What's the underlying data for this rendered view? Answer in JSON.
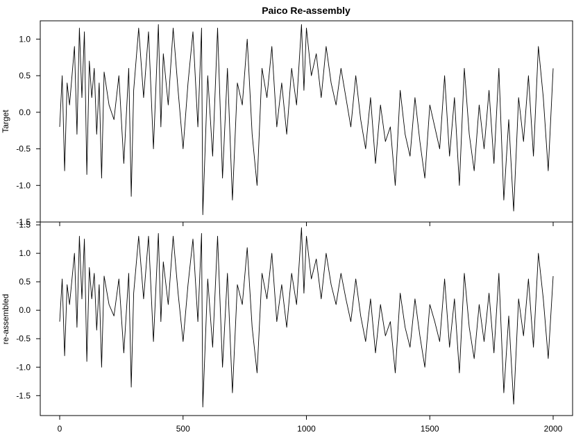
{
  "chart_data": {
    "type": "line",
    "title": "Paico Re-assembly",
    "x_range": [
      0,
      2000
    ],
    "x_ticks": [
      0,
      500,
      1000,
      1500,
      2000
    ],
    "x_tick_labels": [
      "0",
      "500",
      "1000",
      "1500",
      "2000"
    ],
    "grid": false,
    "legend": "none",
    "line_color": "#000000",
    "panels": [
      {
        "ylabel": "Target",
        "ylim": [
          -1.5,
          1.25
        ],
        "y_ticks": [
          -1.5,
          -1.0,
          -0.5,
          0.0,
          0.5,
          1.0
        ],
        "y_tick_labels": [
          "-1.5",
          "-1.0",
          "-0.5",
          "0.0",
          "0.5",
          "1.0"
        ],
        "series": [
          {
            "x": [
              0,
              10,
              20,
              30,
              40,
              60,
              70,
              80,
              90,
              100,
              110,
              120,
              130,
              140,
              150,
              160,
              170,
              180,
              200,
              220,
              240,
              260,
              280,
              290,
              300,
              320,
              340,
              360,
              380,
              400,
              410,
              420,
              440,
              460,
              480,
              500,
              520,
              540,
              560,
              575,
              580,
              600,
              620,
              640,
              660,
              680,
              700,
              720,
              740,
              760,
              780,
              800,
              820,
              840,
              860,
              880,
              900,
              920,
              940,
              960,
              980,
              990,
              1000,
              1020,
              1040,
              1060,
              1080,
              1100,
              1120,
              1140,
              1160,
              1180,
              1200,
              1220,
              1240,
              1260,
              1280,
              1300,
              1320,
              1340,
              1360,
              1380,
              1400,
              1420,
              1440,
              1460,
              1480,
              1500,
              1520,
              1540,
              1560,
              1580,
              1600,
              1620,
              1640,
              1660,
              1680,
              1700,
              1720,
              1740,
              1760,
              1780,
              1800,
              1820,
              1840,
              1860,
              1880,
              1900,
              1920,
              1940,
              1960,
              1980,
              2000
            ],
            "y": [
              -0.2,
              0.5,
              -0.8,
              0.4,
              0.1,
              0.9,
              -0.3,
              1.15,
              0.2,
              1.1,
              -0.85,
              0.7,
              0.2,
              0.6,
              -0.3,
              0.4,
              -0.9,
              0.55,
              0.1,
              -0.1,
              0.5,
              -0.7,
              0.6,
              -1.15,
              0.3,
              1.15,
              0.2,
              1.1,
              -0.5,
              1.2,
              -0.2,
              0.8,
              0.1,
              1.15,
              0.3,
              -0.5,
              0.4,
              1.1,
              -0.2,
              1.15,
              -1.4,
              0.5,
              -0.6,
              1.15,
              -0.9,
              0.6,
              -1.2,
              0.4,
              0.1,
              1.0,
              -0.3,
              -1.0,
              0.6,
              0.2,
              0.9,
              -0.2,
              0.4,
              -0.3,
              0.6,
              0.1,
              1.2,
              0.3,
              1.15,
              0.5,
              0.8,
              0.2,
              0.9,
              0.4,
              0.1,
              0.6,
              0.2,
              -0.2,
              0.5,
              -0.1,
              -0.5,
              0.2,
              -0.7,
              0.1,
              -0.4,
              -0.2,
              -1.0,
              0.3,
              -0.3,
              -0.6,
              0.2,
              -0.4,
              -0.9,
              0.1,
              -0.2,
              -0.5,
              0.5,
              -0.6,
              0.2,
              -1.0,
              0.6,
              -0.3,
              -0.8,
              0.1,
              -0.5,
              0.3,
              -0.7,
              0.6,
              -1.2,
              -0.1,
              -1.35,
              0.2,
              -0.4,
              0.5,
              -0.6,
              0.9,
              0.2,
              -0.8,
              0.6
            ]
          }
        ]
      },
      {
        "ylabel": "re-assembled",
        "ylim": [
          -1.85,
          1.55
        ],
        "y_ticks": [
          -1.5,
          -1.0,
          -0.5,
          0.0,
          0.5,
          1.0,
          1.5
        ],
        "y_tick_labels": [
          "-1.5",
          "-1.0",
          "-0.5",
          "0.0",
          "0.5",
          "1.0",
          "1.5"
        ],
        "series": [
          {
            "x": [
              0,
              10,
              20,
              30,
              40,
              60,
              70,
              80,
              90,
              100,
              110,
              120,
              130,
              140,
              150,
              160,
              170,
              180,
              200,
              220,
              240,
              260,
              280,
              290,
              300,
              320,
              340,
              360,
              380,
              400,
              410,
              420,
              440,
              460,
              480,
              500,
              520,
              540,
              560,
              575,
              580,
              600,
              620,
              640,
              660,
              680,
              700,
              720,
              740,
              760,
              780,
              800,
              820,
              840,
              860,
              880,
              900,
              920,
              940,
              960,
              980,
              990,
              1000,
              1020,
              1040,
              1060,
              1080,
              1100,
              1120,
              1140,
              1160,
              1180,
              1200,
              1220,
              1240,
              1260,
              1280,
              1300,
              1320,
              1340,
              1360,
              1380,
              1400,
              1420,
              1440,
              1460,
              1480,
              1500,
              1520,
              1540,
              1560,
              1580,
              1600,
              1620,
              1640,
              1660,
              1680,
              1700,
              1720,
              1740,
              1760,
              1780,
              1800,
              1820,
              1840,
              1860,
              1880,
              1900,
              1920,
              1940,
              1960,
              1980,
              2000
            ],
            "y": [
              -0.2,
              0.55,
              -0.8,
              0.45,
              0.1,
              1.0,
              -0.3,
              1.3,
              0.2,
              1.25,
              -0.9,
              0.75,
              0.2,
              0.65,
              -0.35,
              0.45,
              -1.0,
              0.6,
              0.1,
              -0.1,
              0.55,
              -0.75,
              0.65,
              -1.35,
              0.3,
              1.3,
              0.2,
              1.3,
              -0.55,
              1.35,
              -0.2,
              0.85,
              0.1,
              1.3,
              0.3,
              -0.55,
              0.45,
              1.25,
              -0.2,
              1.35,
              -1.7,
              0.55,
              -0.65,
              1.3,
              -1.0,
              0.65,
              -1.45,
              0.45,
              0.1,
              1.1,
              -0.3,
              -1.1,
              0.65,
              0.2,
              1.0,
              -0.2,
              0.45,
              -0.3,
              0.65,
              0.1,
              1.45,
              0.3,
              1.3,
              0.55,
              0.9,
              0.2,
              1.0,
              0.45,
              0.1,
              0.65,
              0.2,
              -0.2,
              0.55,
              -0.1,
              -0.55,
              0.2,
              -0.75,
              0.1,
              -0.45,
              -0.2,
              -1.1,
              0.3,
              -0.3,
              -0.65,
              0.2,
              -0.45,
              -1.0,
              0.1,
              -0.2,
              -0.55,
              0.55,
              -0.65,
              0.2,
              -1.1,
              0.65,
              -0.3,
              -0.85,
              0.1,
              -0.55,
              0.3,
              -0.75,
              0.65,
              -1.45,
              -0.1,
              -1.65,
              0.2,
              -0.45,
              0.55,
              -0.65,
              1.0,
              0.2,
              -0.85,
              0.6
            ]
          }
        ]
      }
    ]
  }
}
